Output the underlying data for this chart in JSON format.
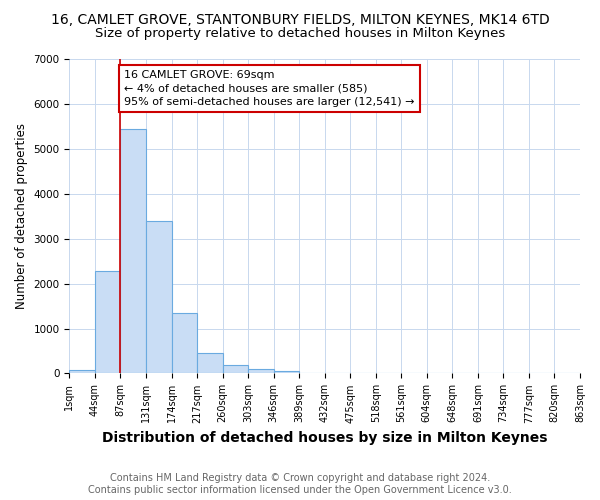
{
  "title": "16, CAMLET GROVE, STANTONBURY FIELDS, MILTON KEYNES, MK14 6TD",
  "subtitle": "Size of property relative to detached houses in Milton Keynes",
  "xlabel": "Distribution of detached houses by size in Milton Keynes",
  "ylabel": "Number of detached properties",
  "bar_values": [
    80,
    2280,
    5450,
    3400,
    1350,
    450,
    180,
    100,
    60,
    0,
    0,
    0,
    0,
    0,
    0,
    0,
    0,
    0,
    0,
    0
  ],
  "bin_labels": [
    "1sqm",
    "44sqm",
    "87sqm",
    "131sqm",
    "174sqm",
    "217sqm",
    "260sqm",
    "303sqm",
    "346sqm",
    "389sqm",
    "432sqm",
    "475sqm",
    "518sqm",
    "561sqm",
    "604sqm",
    "648sqm",
    "691sqm",
    "734sqm",
    "777sqm",
    "820sqm",
    "863sqm"
  ],
  "bar_color": "#c9ddf5",
  "bar_edge_color": "#6aaae0",
  "vline_x_index": 2,
  "vline_color": "#cc0000",
  "annotation_text": "16 CAMLET GROVE: 69sqm\n← 4% of detached houses are smaller (585)\n95% of semi-detached houses are larger (12,541) →",
  "annotation_box_color": "#ffffff",
  "annotation_box_edge": "#cc0000",
  "ylim": [
    0,
    7000
  ],
  "yticks": [
    0,
    1000,
    2000,
    3000,
    4000,
    5000,
    6000,
    7000
  ],
  "footer_line1": "Contains HM Land Registry data © Crown copyright and database right 2024.",
  "footer_line2": "Contains public sector information licensed under the Open Government Licence v3.0.",
  "title_fontsize": 10,
  "subtitle_fontsize": 9.5,
  "xlabel_fontsize": 10,
  "ylabel_fontsize": 8.5,
  "tick_fontsize": 7,
  "annotation_fontsize": 8,
  "footer_fontsize": 7,
  "background_color": "#ffffff",
  "grid_color": "#c8d8ee"
}
